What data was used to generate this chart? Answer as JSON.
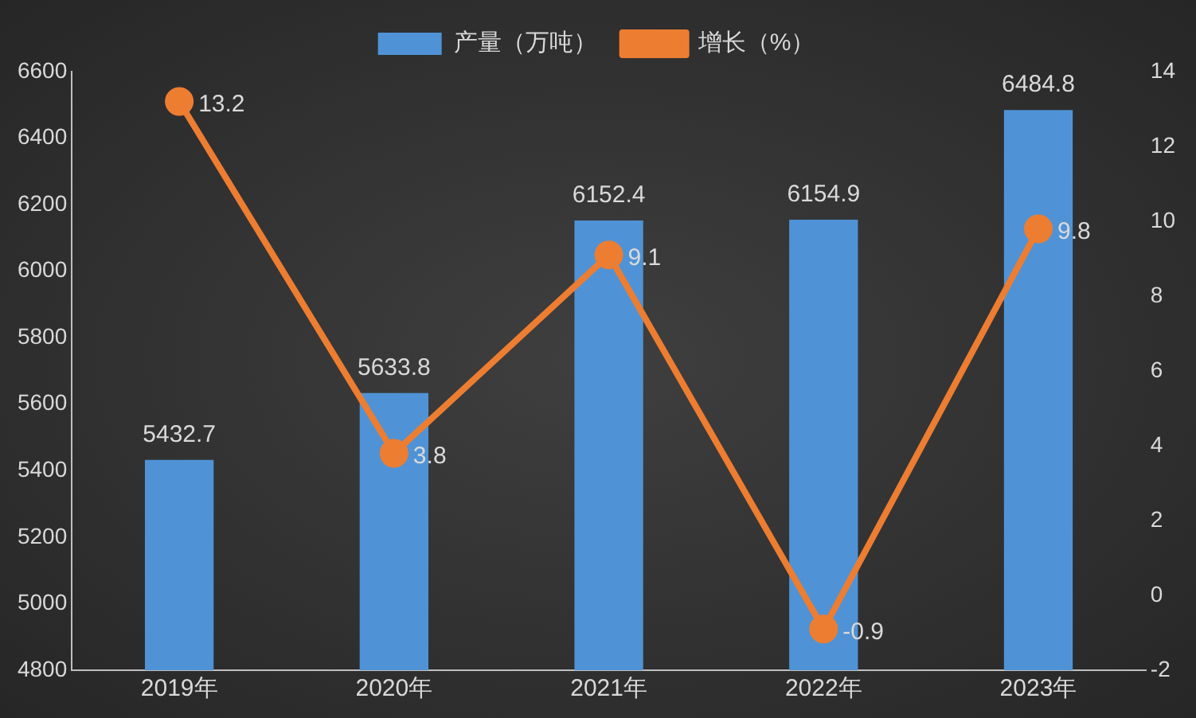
{
  "chart_data": {
    "type": "bar",
    "categories": [
      "2019年",
      "2020年",
      "2021年",
      "2022年",
      "2023年"
    ],
    "series": [
      {
        "name": "产量（万吨）",
        "color": "#4f93d6",
        "values": [
          5432.7,
          5633.8,
          6152.4,
          6154.9,
          6484.8
        ]
      },
      {
        "name": "增长（%）",
        "type": "line",
        "axis": "y2",
        "color": "#ed7d31",
        "values": [
          13.2,
          3.8,
          9.1,
          -0.9,
          9.8
        ]
      }
    ],
    "ylim": [
      4800,
      6600
    ],
    "yticks": [
      4800,
      5000,
      5200,
      5400,
      5600,
      5800,
      6000,
      6200,
      6400,
      6600
    ],
    "y2lim": [
      -2,
      14
    ],
    "y2ticks": [
      -2,
      0,
      2,
      4,
      6,
      8,
      10,
      12,
      14
    ],
    "grid": false,
    "legend": "top",
    "marker": "circle",
    "data_labels": true
  }
}
